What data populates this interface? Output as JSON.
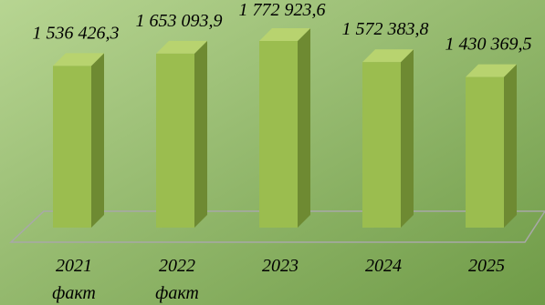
{
  "chart_data": {
    "type": "bar",
    "categories": [
      "2021 факт",
      "2022 факт",
      "2023",
      "2024",
      "2025"
    ],
    "category_lines": [
      [
        "2021",
        "факт"
      ],
      [
        "2022",
        "факт"
      ],
      [
        "2023"
      ],
      [
        "2024"
      ],
      [
        "2025"
      ]
    ],
    "values": [
      1536426.3,
      1653093.9,
      1772923.6,
      1572383.8,
      1430369.5
    ],
    "data_labels": [
      "1 536 426,3",
      "1 653 093,9",
      "1 772 923,6",
      "1 572 383,8",
      "1 430 369,5"
    ],
    "title": "",
    "xlabel": "",
    "ylabel": "",
    "ylim": [
      0,
      1900000
    ],
    "grid": false,
    "legend": "none",
    "three_d": true
  },
  "colors": {
    "background_light": "#b7d592",
    "background_dark": "#6f9b47",
    "bar_front": "#9bbd4f",
    "bar_side": "#6e8a32",
    "bar_top": "#b8d36f",
    "floor_line": "#a8a8a8"
  }
}
